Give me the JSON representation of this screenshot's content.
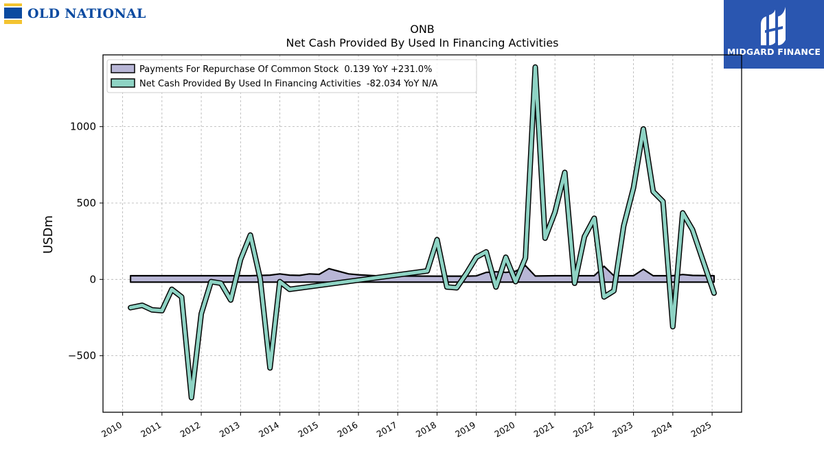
{
  "branding": {
    "left_logo_text": "OLD NATIONAL",
    "right_logo_text": "MIDGARD FINANCE"
  },
  "colors": {
    "series_repurchase": "#b8b6d6",
    "series_financing": "#8ed3c4",
    "outline": "#000000",
    "grid": "#b0b0b0",
    "brand_blue": "#2a56b0"
  },
  "chart_data": {
    "type": "line",
    "title": "ONB",
    "subtitle": "Net Cash Provided By Used In Financing Activities",
    "ylabel": "USDm",
    "xlabel": "",
    "ylim": [
      -870,
      1470
    ],
    "xlim": [
      2009.5,
      2025.75
    ],
    "yticks": [
      -500,
      0,
      500,
      1000
    ],
    "ytick_labels": [
      "−500",
      "0",
      "500",
      "1000"
    ],
    "xticks": [
      2010,
      2011,
      2012,
      2013,
      2014,
      2015,
      2016,
      2017,
      2018,
      2019,
      2020,
      2021,
      2022,
      2023,
      2024,
      2025
    ],
    "xtick_labels": [
      "2010",
      "2011",
      "2012",
      "2013",
      "2014",
      "2015",
      "2016",
      "2017",
      "2018",
      "2019",
      "2020",
      "2021",
      "2022",
      "2023",
      "2024",
      "2025"
    ],
    "grid": true,
    "legend_position": "top-left",
    "series": [
      {
        "name": "Payments For Repurchase Of Common Stock",
        "legend_label": "Payments For Repurchase Of Common Stock  0.139 YoY +231.0%",
        "color": "#b8b6d6",
        "style": "filled-band",
        "points": [
          [
            2010.2,
            6
          ],
          [
            2011.0,
            6
          ],
          [
            2012.0,
            6
          ],
          [
            2012.75,
            6
          ],
          [
            2013.25,
            6
          ],
          [
            2013.75,
            10
          ],
          [
            2014.0,
            18
          ],
          [
            2014.25,
            10
          ],
          [
            2014.5,
            8
          ],
          [
            2014.75,
            18
          ],
          [
            2015.0,
            15
          ],
          [
            2015.25,
            52
          ],
          [
            2015.5,
            35
          ],
          [
            2015.75,
            18
          ],
          [
            2016.0,
            12
          ],
          [
            2016.5,
            5
          ],
          [
            2017.0,
            4
          ],
          [
            2018.0,
            3
          ],
          [
            2018.75,
            3
          ],
          [
            2019.0,
            5
          ],
          [
            2019.25,
            28
          ],
          [
            2019.5,
            32
          ],
          [
            2019.75,
            28
          ],
          [
            2020.0,
            35
          ],
          [
            2020.25,
            72
          ],
          [
            2020.5,
            4
          ],
          [
            2021.0,
            6
          ],
          [
            2021.75,
            6
          ],
          [
            2022.0,
            6
          ],
          [
            2022.25,
            68
          ],
          [
            2022.5,
            6
          ],
          [
            2023.0,
            6
          ],
          [
            2023.25,
            48
          ],
          [
            2023.5,
            6
          ],
          [
            2024.0,
            6
          ],
          [
            2024.25,
            14
          ],
          [
            2024.5,
            8
          ],
          [
            2025.05,
            6
          ]
        ]
      },
      {
        "name": "Net Cash Provided By Used In Financing Activities",
        "legend_label": "Net Cash Provided By Used In Financing Activities  -82.034 YoY N/A",
        "color": "#8ed3c4",
        "style": "thick-line",
        "points": [
          [
            2010.2,
            -185
          ],
          [
            2010.5,
            -170
          ],
          [
            2010.75,
            -200
          ],
          [
            2011.0,
            -205
          ],
          [
            2011.25,
            -65
          ],
          [
            2011.5,
            -115
          ],
          [
            2011.75,
            -775
          ],
          [
            2012.0,
            -225
          ],
          [
            2012.25,
            -15
          ],
          [
            2012.5,
            -25
          ],
          [
            2012.75,
            -135
          ],
          [
            2013.0,
            130
          ],
          [
            2013.25,
            290
          ],
          [
            2013.5,
            5
          ],
          [
            2013.75,
            -580
          ],
          [
            2014.0,
            -15
          ],
          [
            2014.25,
            -65
          ],
          [
            2017.75,
            55
          ],
          [
            2018.0,
            260
          ],
          [
            2018.25,
            -50
          ],
          [
            2018.5,
            -55
          ],
          [
            2018.75,
            40
          ],
          [
            2019.0,
            145
          ],
          [
            2019.25,
            180
          ],
          [
            2019.5,
            -50
          ],
          [
            2019.75,
            145
          ],
          [
            2020.0,
            -15
          ],
          [
            2020.25,
            140
          ],
          [
            2020.5,
            1390
          ],
          [
            2020.75,
            270
          ],
          [
            2021.0,
            440
          ],
          [
            2021.25,
            700
          ],
          [
            2021.5,
            -25
          ],
          [
            2021.75,
            280
          ],
          [
            2022.0,
            400
          ],
          [
            2022.25,
            -115
          ],
          [
            2022.5,
            -75
          ],
          [
            2022.75,
            350
          ],
          [
            2023.0,
            600
          ],
          [
            2023.25,
            985
          ],
          [
            2023.5,
            575
          ],
          [
            2023.75,
            510
          ],
          [
            2024.0,
            -310
          ],
          [
            2024.25,
            435
          ],
          [
            2024.5,
            325
          ],
          [
            2024.75,
            135
          ],
          [
            2025.05,
            -90
          ]
        ]
      }
    ]
  }
}
